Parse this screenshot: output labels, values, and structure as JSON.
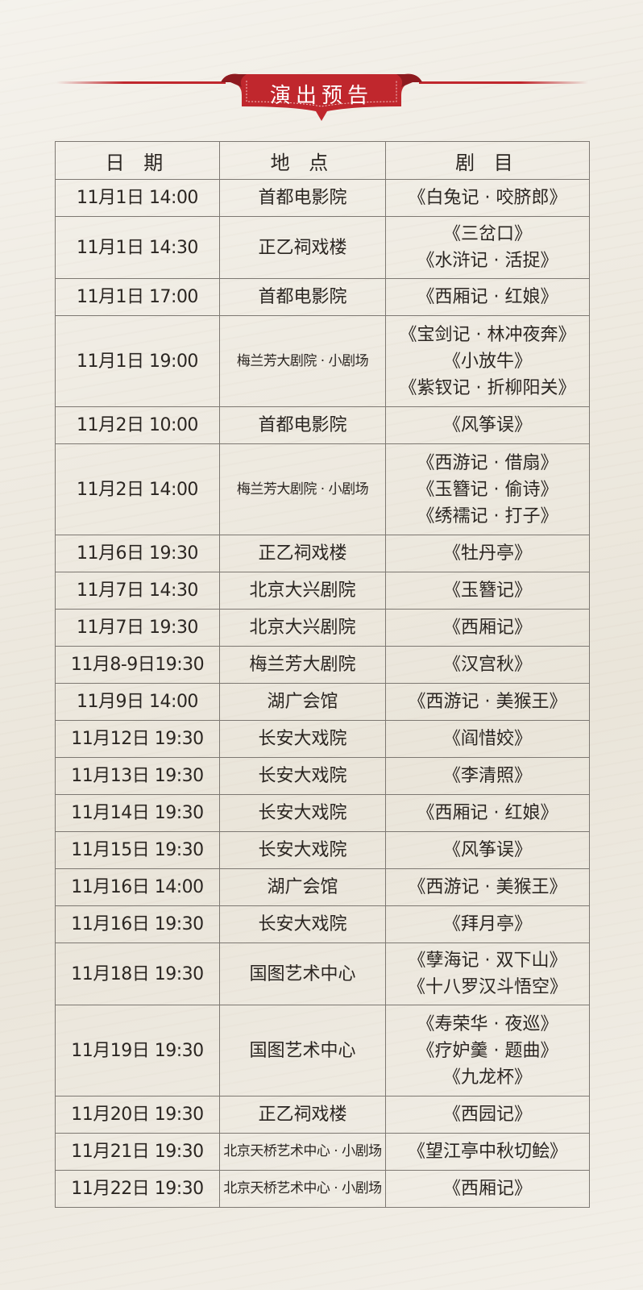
{
  "banner": {
    "title": "演出预告",
    "color": "#c0272d"
  },
  "table": {
    "headers": [
      "日 期",
      "地 点",
      "剧 目"
    ],
    "rows": [
      {
        "date": "11月1日 14:00",
        "venue": "首都电影院",
        "plays": [
          "《白兔记 · 咬脐郎》"
        ]
      },
      {
        "date": "11月1日 14:30",
        "venue": "正乙祠戏楼",
        "plays": [
          "《三岔口》",
          "《水浒记 · 活捉》"
        ]
      },
      {
        "date": "11月1日 17:00",
        "venue": "首都电影院",
        "plays": [
          "《西厢记 · 红娘》"
        ]
      },
      {
        "date": "11月1日 19:00",
        "venue": "梅兰芳大剧院 · 小剧场",
        "plays": [
          "《宝剑记 · 林冲夜奔》",
          "《小放牛》",
          "《紫钗记 · 折柳阳关》"
        ]
      },
      {
        "date": "11月2日 10:00",
        "venue": "首都电影院",
        "plays": [
          "《风筝误》"
        ]
      },
      {
        "date": "11月2日 14:00",
        "venue": "梅兰芳大剧院 · 小剧场",
        "plays": [
          "《西游记 · 借扇》",
          "《玉簪记 · 偷诗》",
          "《绣襦记 · 打子》"
        ]
      },
      {
        "date": "11月6日 19:30",
        "venue": "正乙祠戏楼",
        "plays": [
          "《牡丹亭》"
        ]
      },
      {
        "date": "11月7日 14:30",
        "venue": "北京大兴剧院",
        "plays": [
          "《玉簪记》"
        ]
      },
      {
        "date": "11月7日 19:30",
        "venue": "北京大兴剧院",
        "plays": [
          "《西厢记》"
        ]
      },
      {
        "date": "11月8-9日19:30",
        "venue": "梅兰芳大剧院",
        "plays": [
          "《汉宫秋》"
        ]
      },
      {
        "date": "11月9日 14:00",
        "venue": "湖广会馆",
        "plays": [
          "《西游记 · 美猴王》"
        ]
      },
      {
        "date": "11月12日 19:30",
        "venue": "长安大戏院",
        "plays": [
          "《阎惜姣》"
        ]
      },
      {
        "date": "11月13日 19:30",
        "venue": "长安大戏院",
        "plays": [
          "《李清照》"
        ]
      },
      {
        "date": "11月14日 19:30",
        "venue": "长安大戏院",
        "plays": [
          "《西厢记 · 红娘》"
        ]
      },
      {
        "date": "11月15日 19:30",
        "venue": "长安大戏院",
        "plays": [
          "《风筝误》"
        ]
      },
      {
        "date": "11月16日 14:00",
        "venue": "湖广会馆",
        "plays": [
          "《西游记 · 美猴王》"
        ]
      },
      {
        "date": "11月16日 19:30",
        "venue": "长安大戏院",
        "plays": [
          "《拜月亭》"
        ]
      },
      {
        "date": "11月18日 19:30",
        "venue": "国图艺术中心",
        "plays": [
          "《孽海记 · 双下山》",
          "《十八罗汉斗悟空》"
        ]
      },
      {
        "date": "11月19日 19:30",
        "venue": "国图艺术中心",
        "plays": [
          "《寿荣华 · 夜巡》",
          "《疗妒羹 · 题曲》",
          "《九龙杯》"
        ]
      },
      {
        "date": "11月20日 19:30",
        "venue": "正乙祠戏楼",
        "plays": [
          "《西园记》"
        ]
      },
      {
        "date": "11月21日 19:30",
        "venue": "北京天桥艺术中心 · 小剧场",
        "plays": [
          "《望江亭中秋切鲙》"
        ]
      },
      {
        "date": "11月22日 19:30",
        "venue": "北京天桥艺术中心 · 小剧场",
        "plays": [
          "《西厢记》"
        ]
      }
    ]
  }
}
